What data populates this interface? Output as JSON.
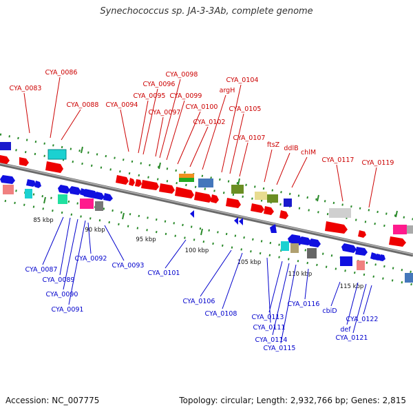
{
  "title": "Synechococcus sp. JA-3-3Ab, complete genome",
  "footer": {
    "accession": "Accession: NC_007775",
    "topology": "Topology: circular; Length: 2,932,766 bp; Genes: 2,815"
  },
  "colors": {
    "top_label": "#cc0000",
    "bottom_label": "#0000cc",
    "backbone": "#888888",
    "tick": "#2a8a2a"
  },
  "scale_labels": [
    "85 kbp",
    "90 kbp",
    "95 kbp",
    "100 kbp",
    "105 kbp",
    "110 kbp",
    "115 kbp"
  ],
  "top_labels": [
    "CYA_0083",
    "CYA_0086",
    "CYA_0088",
    "CYA_0094",
    "CYA_0095",
    "CYA_0096",
    "CYA_0097",
    "CYA_0098",
    "CYA_0099",
    "CYA_0100",
    "CYA_0102",
    "argH",
    "CYA_0104",
    "CYA_0105",
    "CYA_0107",
    "ftsZ",
    "ddlB",
    "chlM",
    "CYA_0117",
    "CYA_0119"
  ],
  "bottom_labels": [
    "CYA_0087",
    "CYA_0089",
    "CYA_0090",
    "CYA_0091",
    "CYA_0092",
    "CYA_0093",
    "CYA_0101",
    "CYA_0106",
    "CYA_0108",
    "CYA_0111",
    "CYA_0113",
    "CYA_0114",
    "CYA_0115",
    "CYA_0116",
    "cbiD",
    "def",
    "CYA_0121",
    "CYA_0122"
  ]
}
